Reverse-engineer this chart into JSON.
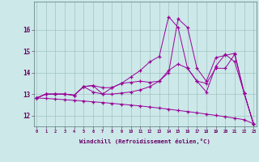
{
  "xlabel": "Windchill (Refroidissement éolien,°C)",
  "bg_color": "#cce8e8",
  "line_color": "#990099",
  "xlim_min": -0.3,
  "xlim_max": 23.3,
  "ylim_min": 11.5,
  "ylim_max": 17.3,
  "yticks": [
    12,
    13,
    14,
    15,
    16
  ],
  "xticks": [
    0,
    1,
    2,
    3,
    4,
    5,
    6,
    7,
    8,
    9,
    10,
    11,
    12,
    13,
    14,
    15,
    16,
    17,
    18,
    19,
    20,
    21,
    22,
    23
  ],
  "hours": [
    0,
    1,
    2,
    3,
    4,
    5,
    6,
    7,
    8,
    9,
    10,
    11,
    12,
    13,
    14,
    15,
    16,
    17,
    18,
    19,
    20,
    21,
    22,
    23
  ],
  "line_low": [
    12.82,
    12.8,
    12.77,
    12.74,
    12.71,
    12.68,
    12.64,
    12.61,
    12.57,
    12.53,
    12.49,
    12.45,
    12.4,
    12.35,
    12.3,
    12.24,
    12.19,
    12.13,
    12.07,
    12.01,
    11.95,
    11.88,
    11.81,
    11.62
  ],
  "line_mid": [
    12.82,
    13.0,
    13.0,
    13.0,
    12.95,
    13.35,
    13.1,
    13.0,
    13.0,
    13.05,
    13.1,
    13.2,
    13.35,
    13.6,
    14.1,
    14.4,
    14.2,
    13.6,
    13.5,
    14.2,
    14.2,
    14.85,
    13.05,
    11.6
  ],
  "line_spike1": [
    12.82,
    13.0,
    13.0,
    13.0,
    12.95,
    13.35,
    13.4,
    13.3,
    13.3,
    13.5,
    13.55,
    13.6,
    13.55,
    13.6,
    14.0,
    16.5,
    16.1,
    14.2,
    13.6,
    14.7,
    14.8,
    14.9,
    13.05,
    11.6
  ],
  "line_spike2": [
    12.82,
    13.0,
    13.0,
    13.0,
    12.95,
    13.35,
    13.4,
    13.0,
    13.3,
    13.5,
    13.8,
    14.1,
    14.5,
    14.75,
    16.6,
    16.1,
    14.2,
    13.6,
    13.1,
    14.3,
    14.85,
    14.5,
    13.05,
    11.6
  ]
}
